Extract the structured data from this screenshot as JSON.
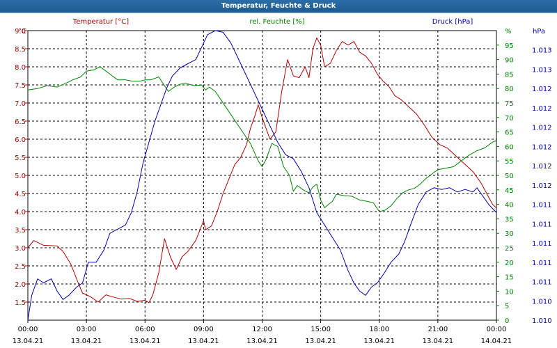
{
  "window": {
    "title": "Temperatur, Feuchte & Druck"
  },
  "colors": {
    "temperature": "#b00000",
    "humidity": "#008000",
    "pressure": "#0000b0",
    "grid": "#000000",
    "titlebar": "#1d5a8f"
  },
  "chart_data": {
    "type": "line",
    "title": "Temperatur, Feuchte & Druck",
    "x_ticks": [
      {
        "time": "00:00",
        "date": "13.04.21",
        "h": 0
      },
      {
        "time": "03:00",
        "date": "13.04.21",
        "h": 3
      },
      {
        "time": "06:00",
        "date": "13.04.21",
        "h": 6
      },
      {
        "time": "09:00",
        "date": "13.04.21",
        "h": 9
      },
      {
        "time": "12:00",
        "date": "13.04.21",
        "h": 12
      },
      {
        "time": "15:00",
        "date": "13.04.21",
        "h": 15
      },
      {
        "time": "18:00",
        "date": "13.04.21",
        "h": 18
      },
      {
        "time": "21:00",
        "date": "13.04.21",
        "h": 21
      },
      {
        "time": "00:00",
        "date": "14.04.21",
        "h": 24
      }
    ],
    "axes": {
      "temperature": {
        "unit": "°C",
        "min": 1.0,
        "max": 9.0,
        "ticks": [
          "9.0",
          "8.5",
          "8.0",
          "7.5",
          "7.0",
          "6.5",
          "6.0",
          "5.5",
          "5.0",
          "4.5",
          "4.0",
          "3.5",
          "3.0",
          "2.5",
          "2.0",
          "1.5"
        ]
      },
      "humidity": {
        "unit": "%",
        "min": 0,
        "max": 100,
        "ticks": [
          "95",
          "90",
          "85",
          "80",
          "75",
          "70",
          "65",
          "60",
          "55",
          "50",
          "45",
          "40",
          "35",
          "30",
          "25",
          "20",
          "15",
          "10",
          "5",
          "0"
        ]
      },
      "pressure": {
        "unit": "hPa",
        "min": 1010.0,
        "max": 1013.5,
        "ticks": [
          "1.013",
          "1.013",
          "1.012",
          "1.012",
          "1.012",
          "1.012",
          "1.012",
          "1.012",
          "1.011",
          "1.011",
          "1.011",
          "1.011",
          "1.011",
          "1.010",
          "1.010"
        ]
      }
    },
    "legend": {
      "temperature": "Temperatur [°C]",
      "humidity": "rel. Feuchte [%]",
      "pressure": "Druck [hPa]",
      "unit_left": "°C",
      "unit_humidity": "%",
      "unit_pressure": "hPa"
    },
    "series": [
      {
        "name": "Temperatur [°C]",
        "key": "temperature",
        "points": [
          [
            0,
            3.0
          ],
          [
            0.3,
            3.2
          ],
          [
            0.8,
            3.07
          ],
          [
            1.5,
            3.05
          ],
          [
            1.8,
            2.9
          ],
          [
            2.2,
            2.55
          ],
          [
            2.6,
            2.0
          ],
          [
            2.8,
            1.75
          ],
          [
            3.2,
            1.65
          ],
          [
            3.6,
            1.5
          ],
          [
            4.0,
            1.7
          ],
          [
            4.3,
            1.65
          ],
          [
            4.8,
            1.58
          ],
          [
            5.2,
            1.6
          ],
          [
            5.6,
            1.52
          ],
          [
            6.0,
            1.55
          ],
          [
            6.2,
            1.48
          ],
          [
            6.4,
            1.7
          ],
          [
            6.7,
            2.3
          ],
          [
            7.0,
            3.25
          ],
          [
            7.3,
            2.75
          ],
          [
            7.6,
            2.4
          ],
          [
            7.9,
            2.75
          ],
          [
            8.2,
            2.9
          ],
          [
            8.6,
            3.2
          ],
          [
            9.0,
            3.75
          ],
          [
            9.1,
            3.5
          ],
          [
            9.4,
            3.6
          ],
          [
            9.7,
            4.0
          ],
          [
            10.0,
            4.5
          ],
          [
            10.3,
            4.9
          ],
          [
            10.6,
            5.3
          ],
          [
            10.9,
            5.5
          ],
          [
            11.2,
            5.85
          ],
          [
            11.4,
            6.3
          ],
          [
            11.6,
            6.6
          ],
          [
            11.8,
            6.95
          ],
          [
            12.0,
            6.6
          ],
          [
            12.2,
            6.3
          ],
          [
            12.4,
            6.0
          ],
          [
            12.7,
            6.2
          ],
          [
            13.0,
            7.3
          ],
          [
            13.3,
            8.2
          ],
          [
            13.6,
            7.75
          ],
          [
            13.9,
            7.7
          ],
          [
            14.2,
            8.0
          ],
          [
            14.4,
            7.7
          ],
          [
            14.6,
            8.5
          ],
          [
            14.8,
            8.8
          ],
          [
            15.0,
            8.6
          ],
          [
            15.2,
            8.0
          ],
          [
            15.5,
            8.1
          ],
          [
            15.8,
            8.45
          ],
          [
            16.1,
            8.7
          ],
          [
            16.4,
            8.6
          ],
          [
            16.7,
            8.7
          ],
          [
            17.0,
            8.4
          ],
          [
            17.3,
            8.3
          ],
          [
            17.6,
            8.1
          ],
          [
            17.9,
            7.8
          ],
          [
            18.2,
            7.6
          ],
          [
            18.5,
            7.45
          ],
          [
            18.8,
            7.2
          ],
          [
            19.1,
            7.1
          ],
          [
            19.5,
            6.9
          ],
          [
            19.9,
            6.7
          ],
          [
            20.3,
            6.4
          ],
          [
            20.7,
            6.05
          ],
          [
            21.1,
            5.85
          ],
          [
            21.5,
            5.75
          ],
          [
            21.9,
            5.55
          ],
          [
            22.3,
            5.35
          ],
          [
            22.8,
            5.1
          ],
          [
            23.2,
            4.8
          ],
          [
            23.5,
            4.5
          ],
          [
            23.8,
            4.2
          ],
          [
            24.0,
            4.1
          ]
        ]
      },
      {
        "name": "rel. Feuchte [%]",
        "key": "humidity",
        "points": [
          [
            0,
            79.5
          ],
          [
            0.5,
            80
          ],
          [
            1.0,
            81
          ],
          [
            1.5,
            80.5
          ],
          [
            2.0,
            82
          ],
          [
            2.3,
            83
          ],
          [
            2.7,
            84
          ],
          [
            3.0,
            86
          ],
          [
            3.4,
            86.5
          ],
          [
            3.7,
            87.5
          ],
          [
            4.0,
            86
          ],
          [
            4.3,
            84.5
          ],
          [
            4.6,
            83
          ],
          [
            5.0,
            83
          ],
          [
            5.4,
            82.5
          ],
          [
            5.7,
            82.5
          ],
          [
            6.0,
            83
          ],
          [
            6.3,
            83
          ],
          [
            6.7,
            84
          ],
          [
            6.9,
            82
          ],
          [
            7.2,
            79
          ],
          [
            7.5,
            80.5
          ],
          [
            7.8,
            81.5
          ],
          [
            8.1,
            81.8
          ],
          [
            8.5,
            81
          ],
          [
            8.9,
            81.2
          ],
          [
            9.1,
            79.5
          ],
          [
            9.3,
            80.5
          ],
          [
            9.6,
            79
          ],
          [
            9.9,
            76
          ],
          [
            10.2,
            73
          ],
          [
            10.6,
            69
          ],
          [
            11.0,
            65
          ],
          [
            11.4,
            61
          ],
          [
            11.8,
            55
          ],
          [
            12.0,
            53
          ],
          [
            12.2,
            55.5
          ],
          [
            12.5,
            61
          ],
          [
            12.8,
            60
          ],
          [
            13.1,
            53
          ],
          [
            13.4,
            50
          ],
          [
            13.6,
            44.5
          ],
          [
            13.8,
            46.5
          ],
          [
            14.1,
            45
          ],
          [
            14.4,
            44
          ],
          [
            14.6,
            46
          ],
          [
            14.8,
            47
          ],
          [
            15.0,
            41.5
          ],
          [
            15.2,
            38.8
          ],
          [
            15.4,
            40
          ],
          [
            15.6,
            41
          ],
          [
            15.8,
            43.5
          ],
          [
            16.2,
            43
          ],
          [
            16.6,
            42.8
          ],
          [
            17.0,
            41.5
          ],
          [
            17.4,
            41
          ],
          [
            17.7,
            40.5
          ],
          [
            18.0,
            37.5
          ],
          [
            18.3,
            38
          ],
          [
            18.6,
            39.5
          ],
          [
            18.9,
            42
          ],
          [
            19.2,
            44
          ],
          [
            19.5,
            45
          ],
          [
            19.8,
            45.5
          ],
          [
            20.1,
            47
          ],
          [
            20.4,
            49
          ],
          [
            20.7,
            50.5
          ],
          [
            21.0,
            52
          ],
          [
            21.4,
            52.5
          ],
          [
            21.8,
            53
          ],
          [
            22.2,
            55
          ],
          [
            22.6,
            57
          ],
          [
            23.0,
            58.5
          ],
          [
            23.4,
            59.5
          ],
          [
            23.8,
            61.5
          ],
          [
            24.0,
            62
          ]
        ]
      },
      {
        "name": "Druck [hPa]",
        "key": "pressure",
        "points": [
          [
            0,
            1010.0
          ],
          [
            0.2,
            1010.3
          ],
          [
            0.5,
            1010.5
          ],
          [
            0.8,
            1010.45
          ],
          [
            1.2,
            1010.5
          ],
          [
            1.5,
            1010.35
          ],
          [
            1.8,
            1010.25
          ],
          [
            2.1,
            1010.3
          ],
          [
            2.5,
            1010.4
          ],
          [
            2.8,
            1010.45
          ],
          [
            3.1,
            1010.7
          ],
          [
            3.5,
            1010.7
          ],
          [
            3.9,
            1010.85
          ],
          [
            4.2,
            1011.05
          ],
          [
            4.6,
            1011.1
          ],
          [
            5.0,
            1011.15
          ],
          [
            5.3,
            1011.3
          ],
          [
            5.6,
            1011.55
          ],
          [
            5.9,
            1011.9
          ],
          [
            6.2,
            1012.15
          ],
          [
            6.5,
            1012.4
          ],
          [
            6.8,
            1012.6
          ],
          [
            7.1,
            1012.8
          ],
          [
            7.4,
            1012.95
          ],
          [
            7.8,
            1013.05
          ],
          [
            8.2,
            1013.1
          ],
          [
            8.6,
            1013.15
          ],
          [
            8.9,
            1013.3
          ],
          [
            9.2,
            1013.45
          ],
          [
            9.6,
            1013.5
          ],
          [
            10.0,
            1013.48
          ],
          [
            10.4,
            1013.35
          ],
          [
            10.8,
            1013.15
          ],
          [
            11.2,
            1012.95
          ],
          [
            11.6,
            1012.75
          ],
          [
            12.0,
            1012.55
          ],
          [
            12.4,
            1012.35
          ],
          [
            12.8,
            1012.15
          ],
          [
            13.2,
            1012.0
          ],
          [
            13.6,
            1011.95
          ],
          [
            14.0,
            1011.8
          ],
          [
            14.4,
            1011.6
          ],
          [
            14.8,
            1011.3
          ],
          [
            15.2,
            1011.15
          ],
          [
            15.6,
            1011.0
          ],
          [
            16.0,
            1010.85
          ],
          [
            16.4,
            1010.6
          ],
          [
            16.7,
            1010.45
          ],
          [
            17.0,
            1010.35
          ],
          [
            17.3,
            1010.3
          ],
          [
            17.6,
            1010.4
          ],
          [
            17.9,
            1010.45
          ],
          [
            18.2,
            1010.55
          ],
          [
            18.6,
            1010.7
          ],
          [
            19.0,
            1010.8
          ],
          [
            19.3,
            1010.95
          ],
          [
            19.6,
            1011.15
          ],
          [
            20.0,
            1011.4
          ],
          [
            20.4,
            1011.55
          ],
          [
            20.8,
            1011.6
          ],
          [
            21.2,
            1011.58
          ],
          [
            21.6,
            1011.6
          ],
          [
            22.0,
            1011.55
          ],
          [
            22.4,
            1011.58
          ],
          [
            22.8,
            1011.55
          ],
          [
            23.0,
            1011.6
          ],
          [
            23.3,
            1011.5
          ],
          [
            23.6,
            1011.4
          ],
          [
            24.0,
            1011.3
          ]
        ]
      }
    ]
  }
}
